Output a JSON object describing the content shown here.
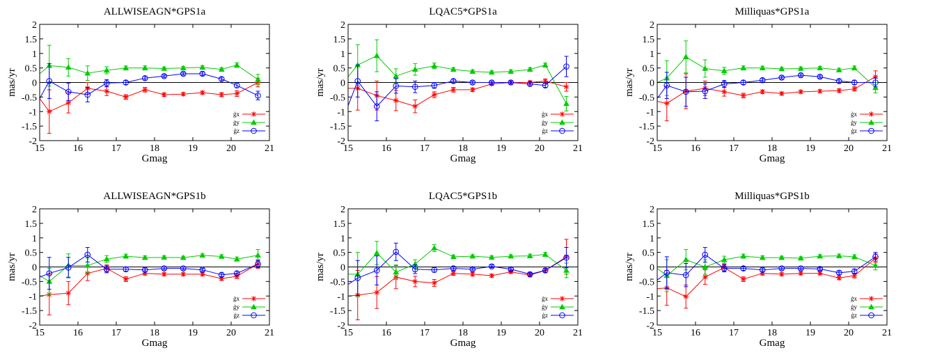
{
  "chart_data": [
    {
      "type": "line",
      "title": "ALLWISEAGN*GPS1a",
      "xlabel": "Gmag",
      "ylabel": "mas/yr",
      "xlim": [
        15,
        21
      ],
      "ylim": [
        -2,
        2
      ],
      "xticks": [
        15,
        16,
        17,
        18,
        19,
        20,
        21
      ],
      "yticks": [
        -2,
        -1.5,
        -1,
        -0.5,
        0,
        0.5,
        1,
        1.5,
        2
      ],
      "grid": false,
      "legend": "bottom-right",
      "x": [
        15.25,
        15.75,
        16.25,
        16.75,
        17.25,
        17.75,
        18.25,
        18.75,
        19.25,
        19.75,
        20.15,
        20.7
      ],
      "series": [
        {
          "name": "ġx",
          "color": "#ff0000",
          "marker": "star",
          "start": [
            15,
            -0.55
          ],
          "values": [
            -1.0,
            -0.7,
            -0.2,
            -0.3,
            -0.5,
            -0.25,
            -0.42,
            -0.4,
            -0.35,
            -0.42,
            -0.38,
            0.0
          ],
          "errors": [
            0.75,
            0.35,
            0.2,
            0.15,
            0.08,
            0.08,
            0.06,
            0.05,
            0.05,
            0.07,
            0.1,
            0.15
          ]
        },
        {
          "name": "ġy",
          "color": "#00cc00",
          "marker": "triangle",
          "start": [
            15,
            0.3
          ],
          "values": [
            0.58,
            0.52,
            0.32,
            0.42,
            0.5,
            0.5,
            0.48,
            0.5,
            0.52,
            0.45,
            0.6,
            0.1
          ],
          "errors": [
            0.7,
            0.3,
            0.25,
            0.12,
            0.07,
            0.07,
            0.05,
            0.05,
            0.06,
            0.06,
            0.08,
            0.18
          ]
        },
        {
          "name": "ġz",
          "color": "#0000ff",
          "marker": "circle",
          "start": [
            15,
            -0.55
          ],
          "values": [
            0.05,
            -0.32,
            -0.42,
            -0.02,
            0.0,
            0.15,
            0.22,
            0.3,
            0.3,
            0.12,
            -0.1,
            -0.45
          ],
          "errors": [
            0.6,
            0.3,
            0.25,
            0.12,
            0.07,
            0.06,
            0.05,
            0.05,
            0.06,
            0.06,
            0.08,
            0.15
          ]
        }
      ]
    },
    {
      "type": "line",
      "title": "LQAC5*GPS1a",
      "xlabel": "Gmag",
      "ylabel": "mas/yr",
      "xlim": [
        15,
        21
      ],
      "ylim": [
        -2,
        2
      ],
      "xticks": [
        15,
        16,
        17,
        18,
        19,
        20,
        21
      ],
      "yticks": [
        -2,
        -1.5,
        -1,
        -0.5,
        0,
        0.5,
        1,
        1.5,
        2
      ],
      "grid": false,
      "legend": "bottom-right",
      "x": [
        15.25,
        15.75,
        16.25,
        16.75,
        17.25,
        17.75,
        18.25,
        18.75,
        19.25,
        19.75,
        20.15,
        20.7
      ],
      "series": [
        {
          "name": "ġx",
          "color": "#ff0000",
          "marker": "star",
          "start": [
            15,
            -0.2
          ],
          "values": [
            -0.2,
            -0.45,
            -0.62,
            -0.82,
            -0.42,
            -0.25,
            -0.25,
            -0.05,
            0.0,
            0.0,
            0.05,
            -0.15
          ],
          "errors": [
            0.75,
            0.5,
            0.35,
            0.22,
            0.1,
            0.08,
            0.06,
            0.05,
            0.05,
            0.06,
            0.07,
            0.15
          ]
        },
        {
          "name": "ġy",
          "color": "#00cc00",
          "marker": "triangle",
          "start": [
            15,
            0.2
          ],
          "values": [
            0.6,
            0.92,
            0.22,
            0.45,
            0.57,
            0.45,
            0.38,
            0.35,
            0.38,
            0.45,
            0.6,
            -0.73
          ],
          "errors": [
            0.7,
            0.55,
            0.25,
            0.2,
            0.1,
            0.06,
            0.05,
            0.05,
            0.05,
            0.06,
            0.07,
            0.25
          ]
        },
        {
          "name": "ġz",
          "color": "#0000ff",
          "marker": "circle",
          "start": [
            15,
            -0.8
          ],
          "values": [
            0.05,
            -0.82,
            -0.12,
            -0.15,
            -0.1,
            0.05,
            0.0,
            0.0,
            0.0,
            -0.05,
            -0.1,
            0.55
          ],
          "errors": [
            0.55,
            0.5,
            0.25,
            0.2,
            0.1,
            0.06,
            0.05,
            0.05,
            0.05,
            0.06,
            0.07,
            0.35
          ]
        }
      ]
    },
    {
      "type": "line",
      "title": "Milliquas*GPS1a",
      "xlabel": "Gmag",
      "ylabel": "mas/yr",
      "xlim": [
        15,
        21
      ],
      "ylim": [
        -2,
        2
      ],
      "xticks": [
        15,
        16,
        17,
        18,
        19,
        20,
        21
      ],
      "yticks": [
        -2,
        -1.5,
        -1,
        -0.5,
        0,
        0.5,
        1,
        1.5,
        2
      ],
      "grid": false,
      "legend": "bottom-right",
      "x": [
        15.25,
        15.75,
        16.25,
        16.75,
        17.25,
        17.75,
        18.25,
        18.75,
        19.25,
        19.75,
        20.15,
        20.7
      ],
      "series": [
        {
          "name": "ġx",
          "color": "#ff0000",
          "marker": "star",
          "start": [
            15,
            -0.65
          ],
          "values": [
            -0.72,
            -0.3,
            -0.2,
            -0.32,
            -0.45,
            -0.32,
            -0.38,
            -0.32,
            -0.3,
            -0.28,
            -0.22,
            0.2
          ],
          "errors": [
            0.6,
            0.6,
            0.25,
            0.15,
            0.08,
            0.06,
            0.05,
            0.05,
            0.05,
            0.06,
            0.07,
            0.2
          ]
        },
        {
          "name": "ġy",
          "color": "#00cc00",
          "marker": "triangle",
          "start": [
            15,
            0.0
          ],
          "values": [
            0.15,
            0.88,
            0.48,
            0.4,
            0.5,
            0.5,
            0.47,
            0.48,
            0.5,
            0.43,
            0.5,
            -0.18
          ],
          "errors": [
            0.6,
            0.55,
            0.3,
            0.12,
            0.07,
            0.06,
            0.05,
            0.05,
            0.05,
            0.06,
            0.07,
            0.18
          ]
        },
        {
          "name": "ġz",
          "color": "#0000ff",
          "marker": "circle",
          "start": [
            15,
            -0.55
          ],
          "values": [
            -0.1,
            -0.32,
            -0.3,
            -0.05,
            0.0,
            0.08,
            0.17,
            0.25,
            0.2,
            0.05,
            0.0,
            0.0
          ],
          "errors": [
            0.45,
            0.5,
            0.25,
            0.12,
            0.07,
            0.06,
            0.05,
            0.05,
            0.05,
            0.06,
            0.07,
            0.15
          ]
        }
      ]
    },
    {
      "type": "line",
      "title": "ALLWISEAGN*GPS1b",
      "xlabel": "Gmag",
      "ylabel": "mas/yr",
      "xlim": [
        15,
        21
      ],
      "ylim": [
        -2,
        2
      ],
      "xticks": [
        15,
        16,
        17,
        18,
        19,
        20,
        21
      ],
      "yticks": [
        -2,
        -1.5,
        -1,
        -0.5,
        0,
        0.5,
        1,
        1.5,
        2
      ],
      "grid": false,
      "legend": "bottom-right",
      "x": [
        15.25,
        15.75,
        16.25,
        16.75,
        17.25,
        17.75,
        18.25,
        18.75,
        19.25,
        19.75,
        20.15,
        20.7
      ],
      "series": [
        {
          "name": "ġx",
          "color": "#ff0000",
          "marker": "star",
          "start": [
            15,
            -1.0
          ],
          "values": [
            -0.95,
            -0.9,
            -0.22,
            -0.05,
            -0.42,
            -0.22,
            -0.25,
            -0.25,
            -0.25,
            -0.4,
            -0.32,
            0.1
          ],
          "errors": [
            0.7,
            0.4,
            0.25,
            0.12,
            0.08,
            0.06,
            0.05,
            0.05,
            0.05,
            0.06,
            0.08,
            0.15
          ]
        },
        {
          "name": "ġy",
          "color": "#00cc00",
          "marker": "triangle",
          "start": [
            15,
            -0.3
          ],
          "values": [
            -0.5,
            0.05,
            0.05,
            0.27,
            0.37,
            0.32,
            0.33,
            0.32,
            0.4,
            0.36,
            0.27,
            0.4
          ],
          "errors": [
            0.45,
            0.4,
            0.25,
            0.12,
            0.07,
            0.06,
            0.05,
            0.05,
            0.05,
            0.06,
            0.07,
            0.2
          ]
        },
        {
          "name": "ġz",
          "color": "#0000ff",
          "marker": "circle",
          "start": [
            15,
            -0.35
          ],
          "values": [
            -0.22,
            -0.02,
            0.42,
            -0.08,
            -0.08,
            -0.1,
            -0.05,
            -0.05,
            -0.1,
            -0.27,
            -0.22,
            0.1
          ],
          "errors": [
            0.55,
            0.35,
            0.25,
            0.12,
            0.07,
            0.06,
            0.05,
            0.05,
            0.05,
            0.06,
            0.07,
            0.12
          ]
        }
      ]
    },
    {
      "type": "line",
      "title": "LQAC5*GPS1b",
      "xlabel": "Gmag",
      "ylabel": "mas/yr",
      "xlim": [
        15,
        21
      ],
      "ylim": [
        -2,
        2
      ],
      "xticks": [
        15,
        16,
        17,
        18,
        19,
        20,
        21
      ],
      "yticks": [
        -2,
        -1.5,
        -1,
        -0.5,
        0,
        0.5,
        1,
        1.5,
        2
      ],
      "grid": false,
      "legend": "bottom-right",
      "x": [
        15.25,
        15.75,
        16.25,
        16.75,
        17.25,
        17.75,
        18.25,
        18.75,
        19.25,
        19.75,
        20.15,
        20.7
      ],
      "series": [
        {
          "name": "ġx",
          "color": "#ff0000",
          "marker": "star",
          "start": [
            15,
            -1.0
          ],
          "values": [
            -0.97,
            -0.88,
            -0.35,
            -0.5,
            -0.55,
            -0.22,
            -0.25,
            -0.3,
            -0.17,
            -0.28,
            -0.12,
            0.35
          ],
          "errors": [
            0.85,
            0.55,
            0.4,
            0.18,
            0.12,
            0.07,
            0.06,
            0.05,
            0.05,
            0.06,
            0.07,
            0.6
          ]
        },
        {
          "name": "ġy",
          "color": "#00cc00",
          "marker": "triangle",
          "start": [
            15,
            -0.25
          ],
          "values": [
            -0.25,
            0.48,
            -0.18,
            0.1,
            0.65,
            0.35,
            0.37,
            0.33,
            0.37,
            0.38,
            0.43,
            -0.12
          ],
          "errors": [
            0.75,
            0.4,
            0.25,
            0.15,
            0.12,
            0.06,
            0.05,
            0.05,
            0.05,
            0.06,
            0.07,
            0.25
          ]
        },
        {
          "name": "ġz",
          "color": "#0000ff",
          "marker": "circle",
          "start": [
            15,
            -0.6
          ],
          "values": [
            -0.38,
            -0.12,
            0.52,
            -0.08,
            -0.1,
            -0.05,
            -0.08,
            0.02,
            -0.08,
            -0.25,
            -0.12,
            0.32
          ],
          "errors": [
            0.6,
            0.5,
            0.3,
            0.15,
            0.08,
            0.06,
            0.05,
            0.05,
            0.05,
            0.06,
            0.07,
            0.35
          ]
        }
      ]
    },
    {
      "type": "line",
      "title": "Milliquas*GPS1b",
      "xlabel": "Gmag",
      "ylabel": "mas/yr",
      "xlim": [
        15,
        21
      ],
      "ylim": [
        -2,
        2
      ],
      "xticks": [
        15,
        16,
        17,
        18,
        19,
        20,
        21
      ],
      "yticks": [
        -2,
        -1.5,
        -1,
        -0.5,
        0,
        0.5,
        1,
        1.5,
        2
      ],
      "grid": false,
      "legend": "bottom-right",
      "x": [
        15.25,
        15.75,
        16.25,
        16.75,
        17.25,
        17.75,
        18.25,
        18.75,
        19.25,
        19.75,
        20.15,
        20.7
      ],
      "series": [
        {
          "name": "ġx",
          "color": "#ff0000",
          "marker": "star",
          "start": [
            15,
            -0.75
          ],
          "values": [
            -0.72,
            -1.02,
            -0.35,
            -0.02,
            -0.42,
            -0.22,
            -0.25,
            -0.22,
            -0.22,
            -0.38,
            -0.3,
            0.3
          ],
          "errors": [
            0.6,
            0.4,
            0.25,
            0.12,
            0.08,
            0.06,
            0.05,
            0.05,
            0.05,
            0.06,
            0.08,
            0.15
          ]
        },
        {
          "name": "ġy",
          "color": "#00cc00",
          "marker": "triangle",
          "start": [
            15,
            -0.05
          ],
          "values": [
            -0.3,
            0.25,
            0.0,
            0.25,
            0.37,
            0.32,
            0.32,
            0.3,
            0.37,
            0.38,
            0.35,
            0.05
          ],
          "errors": [
            0.55,
            0.35,
            0.25,
            0.12,
            0.07,
            0.06,
            0.05,
            0.05,
            0.05,
            0.06,
            0.07,
            0.15
          ]
        },
        {
          "name": "ġz",
          "color": "#0000ff",
          "marker": "circle",
          "start": [
            15,
            -0.45
          ],
          "values": [
            -0.2,
            -0.28,
            0.42,
            -0.05,
            -0.05,
            -0.1,
            -0.05,
            -0.05,
            -0.07,
            -0.2,
            -0.15,
            0.35
          ],
          "errors": [
            0.55,
            0.4,
            0.25,
            0.12,
            0.07,
            0.06,
            0.05,
            0.05,
            0.05,
            0.06,
            0.07,
            0.15
          ]
        }
      ]
    }
  ]
}
